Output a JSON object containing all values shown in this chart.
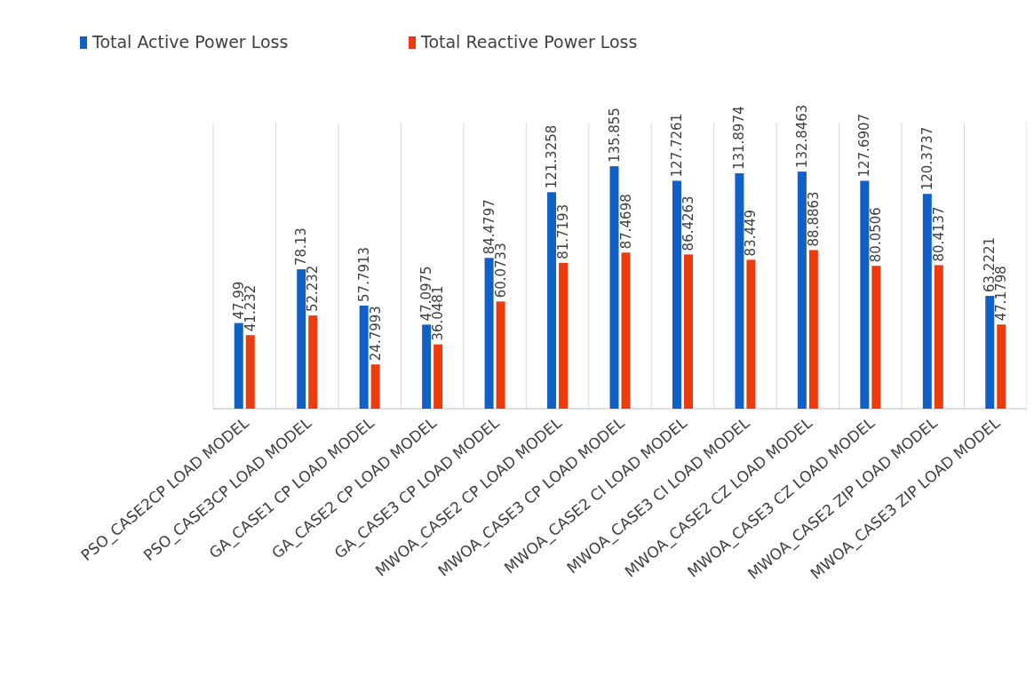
{
  "chart_data": {
    "type": "bar",
    "categories": [
      "PSO_CASE2CP LOAD MODEL",
      "PSO_CASE3CP LOAD MODEL",
      "GA_CASE1 CP LOAD MODEL",
      "GA_CASE2 CP LOAD MODEL",
      "GA_CASE3 CP LOAD MODEL",
      "MWOA_CASE2 CP LOAD MODEL",
      "MWOA_CASE3 CP LOAD MODEL",
      "MWOA_CASE2 CI LOAD MODEL",
      "MWOA_CASE3 CI LOAD MODEL",
      "MWOA_CASE2 CZ LOAD MODEL",
      "MWOA_CASE3 CZ LOAD MODEL",
      "MWOA_CASE2 ZIP LOAD MODEL",
      "MWOA_CASE3 ZIP LOAD MODEL"
    ],
    "series": [
      {
        "name": "Total Active Power Loss",
        "color": "#1160c8",
        "values": [
          47.99,
          78.13,
          57.7913,
          47.0975,
          84.4797,
          121.3258,
          135.855,
          127.7261,
          131.8974,
          132.8463,
          127.6907,
          120.3737,
          63.2221
        ]
      },
      {
        "name": "Total Reactive Power Loss",
        "color": "#ee3b0e",
        "values": [
          41.232,
          52.232,
          24.7993,
          36.0481,
          60.0733,
          81.7193,
          87.4698,
          86.4263,
          83.449,
          88.8863,
          80.0506,
          80.4137,
          47.1798
        ]
      }
    ],
    "data_labels": true,
    "grid": "x",
    "legend": "top left"
  }
}
